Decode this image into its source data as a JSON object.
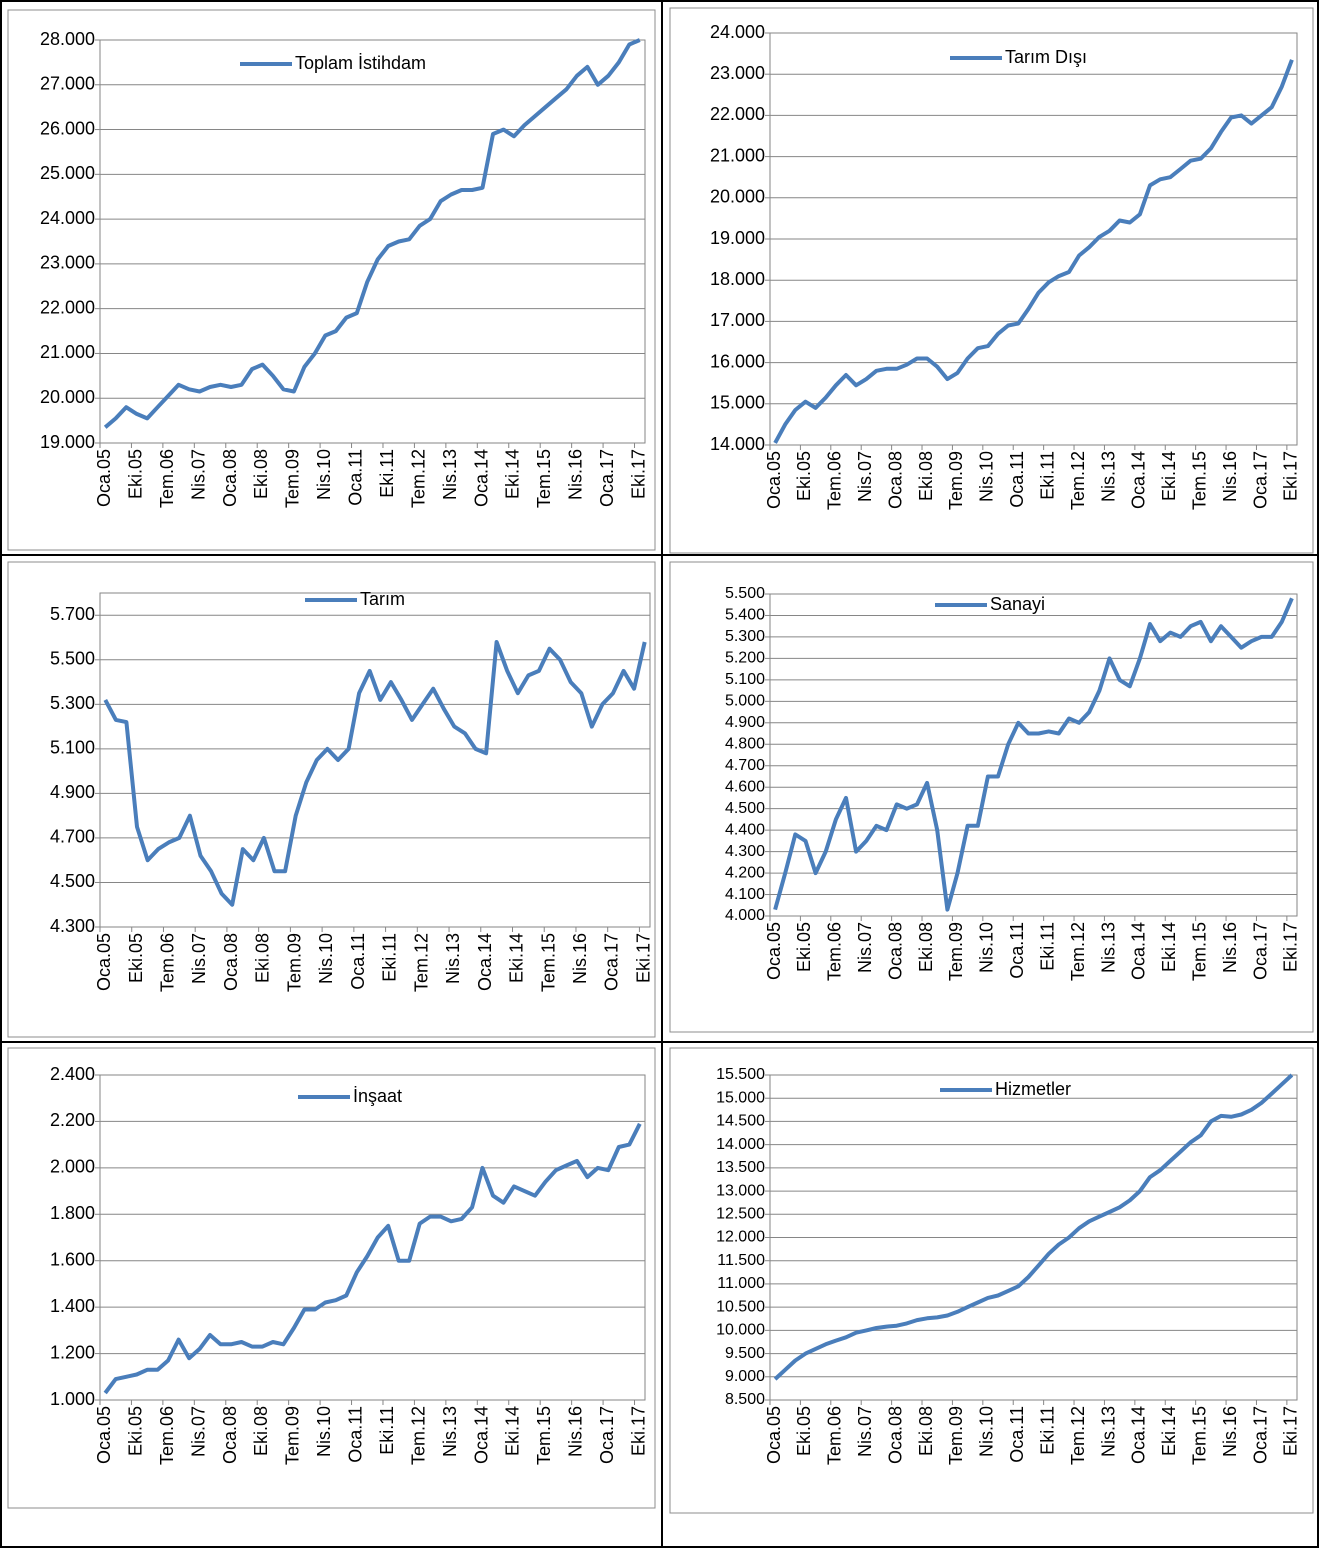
{
  "chart_data": [
    {
      "type": "line",
      "categories": [
        "Oca.05",
        null,
        null,
        "Eki.05",
        null,
        null,
        "Tem.06",
        null,
        null,
        "Nis.07",
        null,
        null,
        "Oca.08",
        null,
        null,
        "Eki.08",
        null,
        null,
        "Tem.09",
        null,
        null,
        "Nis.10",
        null,
        null,
        "Oca.11",
        null,
        null,
        "Eki.11",
        null,
        null,
        "Tem.12",
        null,
        null,
        "Nis.13",
        null,
        null,
        "Oca.14",
        null,
        null,
        "Eki.14",
        null,
        null,
        "Tem.15",
        null,
        null,
        "Nis.16",
        null,
        null,
        "Oca.17",
        null,
        null,
        "Eki.17"
      ],
      "series": [
        {
          "name": "Toplam İstihdam",
          "color": "#4a7ebb",
          "values": [
            19350,
            19550,
            19800,
            19650,
            19550,
            19800,
            20050,
            20300,
            20200,
            20150,
            20250,
            20300,
            20250,
            20300,
            20650,
            20750,
            20500,
            20200,
            20150,
            20700,
            21000,
            21400,
            21500,
            21800,
            21900,
            22600,
            23100,
            23400,
            23500,
            23550,
            23850,
            24000,
            24400,
            24550,
            24650,
            24650,
            24700,
            25900,
            26000,
            25850,
            26100,
            26300,
            26500,
            26700,
            26900,
            27200,
            27400,
            27000,
            27200,
            27500,
            27900,
            28000
          ]
        }
      ],
      "ylim": [
        19000,
        28000
      ],
      "yticks": [
        {
          "value": 19000,
          "label": "19.000"
        },
        {
          "value": 20000,
          "label": "20.000"
        },
        {
          "value": 21000,
          "label": "21.000"
        },
        {
          "value": 22000,
          "label": "22.000"
        },
        {
          "value": 23000,
          "label": "23.000"
        },
        {
          "value": 24000,
          "label": "24.000"
        },
        {
          "value": 25000,
          "label": "25.000"
        },
        {
          "value": 26000,
          "label": "26.000"
        },
        {
          "value": 27000,
          "label": "27.000"
        },
        {
          "value": 28000,
          "label": "28.000"
        }
      ],
      "grid": true
    },
    {
      "type": "line",
      "categories": [
        "Oca.05",
        null,
        null,
        "Eki.05",
        null,
        null,
        "Tem.06",
        null,
        null,
        "Nis.07",
        null,
        null,
        "Oca.08",
        null,
        null,
        "Eki.08",
        null,
        null,
        "Tem.09",
        null,
        null,
        "Nis.10",
        null,
        null,
        "Oca.11",
        null,
        null,
        "Eki.11",
        null,
        null,
        "Tem.12",
        null,
        null,
        "Nis.13",
        null,
        null,
        "Oca.14",
        null,
        null,
        "Eki.14",
        null,
        null,
        "Tem.15",
        null,
        null,
        "Nis.16",
        null,
        null,
        "Oca.17",
        null,
        null,
        "Eki.17"
      ],
      "series": [
        {
          "name": "Tarım Dışı",
          "color": "#4a7ebb",
          "values": [
            14050,
            14500,
            14850,
            15050,
            14900,
            15150,
            15450,
            15700,
            15450,
            15600,
            15800,
            15850,
            15850,
            15950,
            16100,
            16100,
            15900,
            15600,
            15750,
            16100,
            16350,
            16400,
            16700,
            16900,
            16950,
            17300,
            17700,
            17950,
            18100,
            18200,
            18600,
            18800,
            19050,
            19200,
            19450,
            19400,
            19600,
            20300,
            20450,
            20500,
            20700,
            20900,
            20950,
            21200,
            21600,
            21950,
            22000,
            21800,
            22000,
            22200,
            22700,
            23350
          ]
        }
      ],
      "ylim": [
        14000,
        24000
      ],
      "yticks": [
        {
          "value": 14000,
          "label": "14.000"
        },
        {
          "value": 15000,
          "label": "15.000"
        },
        {
          "value": 16000,
          "label": "16.000"
        },
        {
          "value": 17000,
          "label": "17.000"
        },
        {
          "value": 18000,
          "label": "18.000"
        },
        {
          "value": 19000,
          "label": "19.000"
        },
        {
          "value": 20000,
          "label": "20.000"
        },
        {
          "value": 21000,
          "label": "21.000"
        },
        {
          "value": 22000,
          "label": "22.000"
        },
        {
          "value": 23000,
          "label": "23.000"
        },
        {
          "value": 24000,
          "label": "24.000"
        }
      ],
      "grid": true
    },
    {
      "type": "line",
      "categories": [
        "Oca.05",
        null,
        null,
        "Eki.05",
        null,
        null,
        "Tem.06",
        null,
        null,
        "Nis.07",
        null,
        null,
        "Oca.08",
        null,
        null,
        "Eki.08",
        null,
        null,
        "Tem.09",
        null,
        null,
        "Nis.10",
        null,
        null,
        "Oca.11",
        null,
        null,
        "Eki.11",
        null,
        null,
        "Tem.12",
        null,
        null,
        "Nis.13",
        null,
        null,
        "Oca.14",
        null,
        null,
        "Eki.14",
        null,
        null,
        "Tem.15",
        null,
        null,
        "Nis.16",
        null,
        null,
        "Oca.17",
        null,
        null,
        "Eki.17"
      ],
      "series": [
        {
          "name": "Tarım",
          "color": "#4a7ebb",
          "values": [
            5320,
            5230,
            5220,
            4750,
            4600,
            4650,
            4680,
            4700,
            4800,
            4620,
            4550,
            4450,
            4400,
            4650,
            4600,
            4700,
            4550,
            4550,
            4800,
            4950,
            5050,
            5100,
            5050,
            5100,
            5350,
            5450,
            5320,
            5400,
            5320,
            5230,
            5300,
            5370,
            5280,
            5200,
            5170,
            5100,
            5080,
            5580,
            5450,
            5350,
            5430,
            5450,
            5550,
            5500,
            5400,
            5350,
            5200,
            5300,
            5350,
            5450,
            5370,
            5580
          ]
        }
      ],
      "ylim": [
        4300,
        5800
      ],
      "yticks": [
        {
          "value": 4300,
          "label": "4.300"
        },
        {
          "value": 4500,
          "label": "4.500"
        },
        {
          "value": 4700,
          "label": "4.700"
        },
        {
          "value": 4900,
          "label": "4.900"
        },
        {
          "value": 5100,
          "label": "5.100"
        },
        {
          "value": 5300,
          "label": "5.300"
        },
        {
          "value": 5500,
          "label": "5.500"
        },
        {
          "value": 5700,
          "label": "5.700"
        }
      ],
      "grid": true
    },
    {
      "type": "line",
      "categories": [
        "Oca.05",
        null,
        null,
        "Eki.05",
        null,
        null,
        "Tem.06",
        null,
        null,
        "Nis.07",
        null,
        null,
        "Oca.08",
        null,
        null,
        "Eki.08",
        null,
        null,
        "Tem.09",
        null,
        null,
        "Nis.10",
        null,
        null,
        "Oca.11",
        null,
        null,
        "Eki.11",
        null,
        null,
        "Tem.12",
        null,
        null,
        "Nis.13",
        null,
        null,
        "Oca.14",
        null,
        null,
        "Eki.14",
        null,
        null,
        "Tem.15",
        null,
        null,
        "Nis.16",
        null,
        null,
        "Oca.17",
        null,
        null,
        "Eki.17"
      ],
      "series": [
        {
          "name": "Sanayi",
          "color": "#4a7ebb",
          "values": [
            4030,
            4200,
            4380,
            4350,
            4200,
            4300,
            4450,
            4550,
            4300,
            4350,
            4420,
            4400,
            4520,
            4500,
            4520,
            4620,
            4400,
            4030,
            4200,
            4420,
            4420,
            4650,
            4650,
            4800,
            4900,
            4850,
            4850,
            4860,
            4850,
            4920,
            4900,
            4950,
            5050,
            5200,
            5100,
            5070,
            5200,
            5360,
            5280,
            5320,
            5300,
            5350,
            5370,
            5280,
            5350,
            5300,
            5250,
            5280,
            5300,
            5300,
            5370,
            5480
          ]
        }
      ],
      "ylim": [
        4000,
        5500
      ],
      "yticks": [
        {
          "value": 4000,
          "label": "4.000"
        },
        {
          "value": 4100,
          "label": "4.100"
        },
        {
          "value": 4200,
          "label": "4.200"
        },
        {
          "value": 4300,
          "label": "4.300"
        },
        {
          "value": 4400,
          "label": "4.400"
        },
        {
          "value": 4500,
          "label": "4.500"
        },
        {
          "value": 4600,
          "label": "4.600"
        },
        {
          "value": 4700,
          "label": "4.700"
        },
        {
          "value": 4800,
          "label": "4.800"
        },
        {
          "value": 4900,
          "label": "4.900"
        },
        {
          "value": 5000,
          "label": "5.000"
        },
        {
          "value": 5100,
          "label": "5.100"
        },
        {
          "value": 5200,
          "label": "5.200"
        },
        {
          "value": 5300,
          "label": "5.300"
        },
        {
          "value": 5400,
          "label": "5.400"
        },
        {
          "value": 5500,
          "label": "5.500"
        }
      ],
      "grid": true
    },
    {
      "type": "line",
      "categories": [
        "Oca.05",
        null,
        null,
        "Eki.05",
        null,
        null,
        "Tem.06",
        null,
        null,
        "Nis.07",
        null,
        null,
        "Oca.08",
        null,
        null,
        "Eki.08",
        null,
        null,
        "Tem.09",
        null,
        null,
        "Nis.10",
        null,
        null,
        "Oca.11",
        null,
        null,
        "Eki.11",
        null,
        null,
        "Tem.12",
        null,
        null,
        "Nis.13",
        null,
        null,
        "Oca.14",
        null,
        null,
        "Eki.14",
        null,
        null,
        "Tem.15",
        null,
        null,
        "Nis.16",
        null,
        null,
        "Oca.17",
        null,
        null,
        "Eki.17"
      ],
      "series": [
        {
          "name": "İnşaat",
          "color": "#4a7ebb",
          "values": [
            1030,
            1090,
            1100,
            1110,
            1130,
            1130,
            1170,
            1260,
            1180,
            1220,
            1280,
            1240,
            1240,
            1250,
            1230,
            1230,
            1250,
            1240,
            1310,
            1390,
            1390,
            1420,
            1430,
            1450,
            1550,
            1620,
            1700,
            1750,
            1600,
            1600,
            1760,
            1790,
            1790,
            1770,
            1780,
            1830,
            2000,
            1880,
            1850,
            1920,
            1900,
            1880,
            1940,
            1990,
            2010,
            2030,
            1960,
            2000,
            1990,
            2090,
            2100,
            2190
          ]
        }
      ],
      "ylim": [
        1000,
        2400
      ],
      "yticks": [
        {
          "value": 1000,
          "label": "1.000"
        },
        {
          "value": 1200,
          "label": "1.200"
        },
        {
          "value": 1400,
          "label": "1.400"
        },
        {
          "value": 1600,
          "label": "1.600"
        },
        {
          "value": 1800,
          "label": "1.800"
        },
        {
          "value": 2000,
          "label": "2.000"
        },
        {
          "value": 2200,
          "label": "2.200"
        },
        {
          "value": 2400,
          "label": "2.400"
        }
      ],
      "grid": true
    },
    {
      "type": "line",
      "categories": [
        "Oca.05",
        null,
        null,
        "Eki.05",
        null,
        null,
        "Tem.06",
        null,
        null,
        "Nis.07",
        null,
        null,
        "Oca.08",
        null,
        null,
        "Eki.08",
        null,
        null,
        "Tem.09",
        null,
        null,
        "Nis.10",
        null,
        null,
        "Oca.11",
        null,
        null,
        "Eki.11",
        null,
        null,
        "Tem.12",
        null,
        null,
        "Nis.13",
        null,
        null,
        "Oca.14",
        null,
        null,
        "Eki.14",
        null,
        null,
        "Tem.15",
        null,
        null,
        "Nis.16",
        null,
        null,
        "Oca.17",
        null,
        null,
        "Eki.17"
      ],
      "series": [
        {
          "name": "Hizmetler",
          "color": "#4a7ebb",
          "values": [
            8950,
            9150,
            9350,
            9500,
            9600,
            9700,
            9780,
            9850,
            9950,
            10000,
            10050,
            10080,
            10100,
            10150,
            10220,
            10260,
            10280,
            10320,
            10400,
            10500,
            10600,
            10700,
            10750,
            10850,
            10950,
            11150,
            11400,
            11650,
            11850,
            12000,
            12200,
            12350,
            12450,
            12550,
            12650,
            12800,
            13000,
            13300,
            13450,
            13650,
            13850,
            14050,
            14200,
            14500,
            14620,
            14600,
            14650,
            14750,
            14900,
            15100,
            15300,
            15500
          ]
        }
      ],
      "ylim": [
        8500,
        15500
      ],
      "yticks": [
        {
          "value": 8500,
          "label": "8.500"
        },
        {
          "value": 9000,
          "label": "9.000"
        },
        {
          "value": 9500,
          "label": "9.500"
        },
        {
          "value": 10000,
          "label": "10.000"
        },
        {
          "value": 10500,
          "label": "10.500"
        },
        {
          "value": 11000,
          "label": "11.000"
        },
        {
          "value": 11500,
          "label": "11.500"
        },
        {
          "value": 12000,
          "label": "12.000"
        },
        {
          "value": 12500,
          "label": "12.500"
        },
        {
          "value": 13000,
          "label": "13.000"
        },
        {
          "value": 13500,
          "label": "13.500"
        },
        {
          "value": 14000,
          "label": "14.000"
        },
        {
          "value": 14500,
          "label": "14.500"
        },
        {
          "value": 15000,
          "label": "15.000"
        },
        {
          "value": 15500,
          "label": "15.500"
        }
      ],
      "grid": true
    }
  ]
}
